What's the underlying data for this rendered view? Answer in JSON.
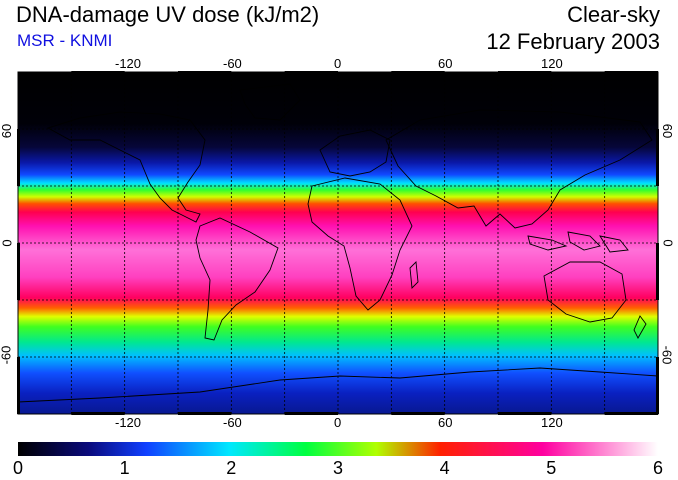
{
  "header": {
    "title": "DNA-damage UV dose (kJ/m2)",
    "source": "MSR - KNMI",
    "condition": "Clear-sky",
    "date": "12 February 2003"
  },
  "colors": {
    "source_text": "#1010e0",
    "background": "#ffffff"
  },
  "map": {
    "projection": "equirectangular",
    "lon_range": [
      -180,
      180
    ],
    "lat_range": [
      -90,
      90
    ],
    "grid_lon_step": 30,
    "grid_lat_step": 30,
    "lon_labels": [
      "-120",
      "-60",
      "0",
      "60",
      "120"
    ],
    "lat_labels": [
      "60",
      "0",
      "-60"
    ]
  },
  "colorbar": {
    "ticks": [
      "0",
      "1",
      "2",
      "3",
      "4",
      "5",
      "6"
    ],
    "min": 0,
    "max": 6,
    "stops": [
      "#000000",
      "#0a0a7c",
      "#1040ff",
      "#00e8ff",
      "#00ff40",
      "#b0ff00",
      "#ff2000",
      "#ff00a0",
      "#ffffff"
    ]
  }
}
